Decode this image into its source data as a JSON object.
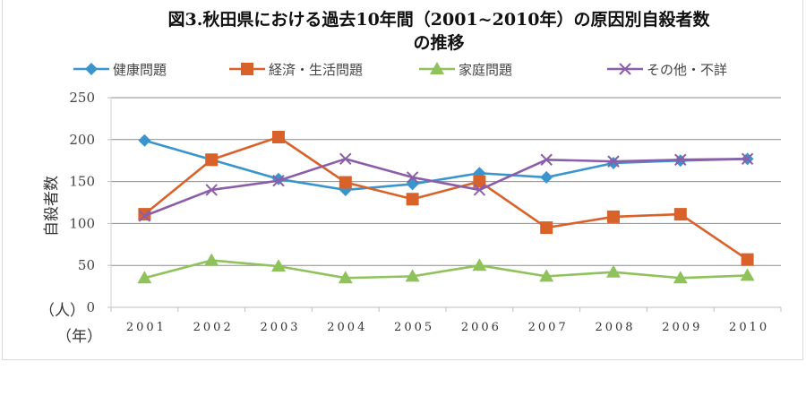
{
  "chart_data": {
    "type": "line",
    "title_line1": "図3.秋田県における過去10年間（2001~2010年）の原因別自殺者数",
    "title_line2": "の推移",
    "ylabel": "自殺者数",
    "yunit": "（人）",
    "xunit": "（年）",
    "ylim": [
      0,
      250
    ],
    "yticks": [
      "0",
      "50",
      "100",
      "150",
      "200",
      "250"
    ],
    "ytick_values": [
      0,
      50,
      100,
      150,
      200,
      250
    ],
    "grid": true,
    "legend_position": "top",
    "categories": [
      "2001",
      "2002",
      "2003",
      "2004",
      "2005",
      "2006",
      "2007",
      "2008",
      "2009",
      "2010"
    ],
    "series": [
      {
        "name": "健康問題",
        "color": "#3a95cf",
        "marker": "diamond",
        "values": [
          199,
          176,
          153,
          140,
          147,
          160,
          155,
          172,
          175,
          177
        ]
      },
      {
        "name": "経済・生活問題",
        "color": "#d9622b",
        "marker": "square",
        "values": [
          111,
          176,
          203,
          149,
          129,
          150,
          95,
          108,
          111,
          57
        ]
      },
      {
        "name": "家庭問題",
        "color": "#8fc25a",
        "marker": "triangle",
        "values": [
          35,
          56,
          49,
          35,
          37,
          50,
          37,
          42,
          35,
          38
        ]
      },
      {
        "name": "その他・不詳",
        "color": "#8a5ea8",
        "marker": "x",
        "values": [
          109,
          140,
          151,
          177,
          155,
          140,
          176,
          174,
          176,
          177
        ]
      }
    ]
  }
}
